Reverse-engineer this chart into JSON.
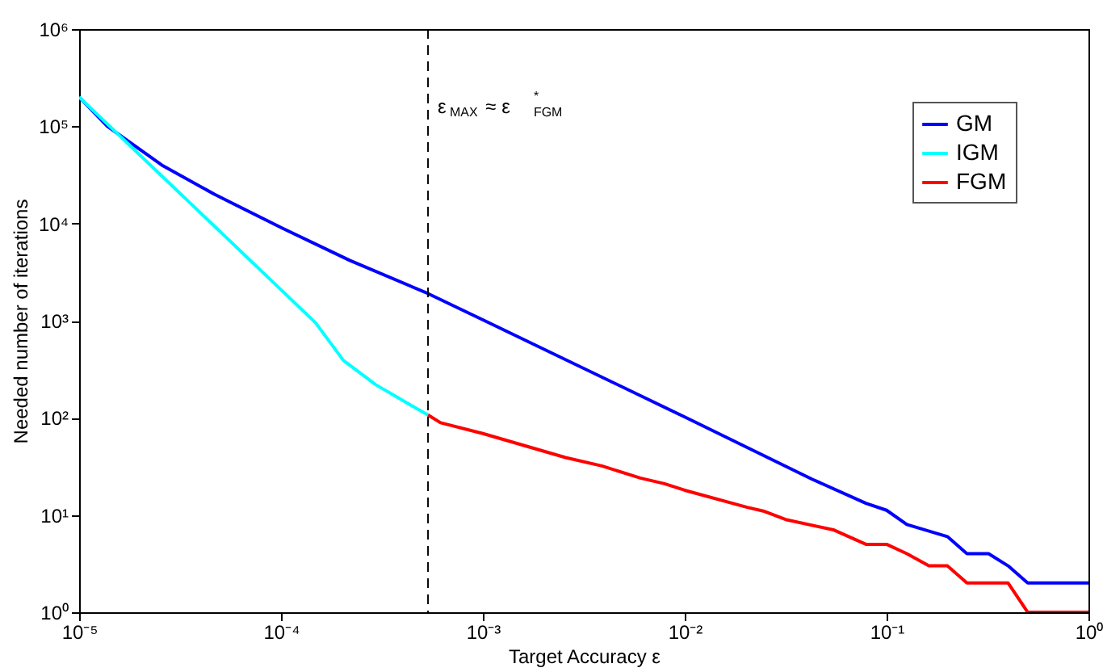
{
  "chart_data": {
    "type": "line",
    "xlabel": "Target Accuracy ε",
    "ylabel": "Needed number of iterations",
    "log": "xy",
    "grid": false,
    "legend": "top right",
    "xlim": [
      1e-05,
      1
    ],
    "ylim": [
      1,
      1000000
    ],
    "xticks": [
      {
        "value": 1e-05,
        "label": "10⁻⁵"
      },
      {
        "value": 0.0001,
        "label": "10⁻⁴"
      },
      {
        "value": 0.001,
        "label": "10⁻³"
      },
      {
        "value": 0.01,
        "label": "10⁻²"
      },
      {
        "value": 0.1,
        "label": "10⁻¹"
      },
      {
        "value": 1,
        "label": "10⁰"
      }
    ],
    "yticks": [
      {
        "value": 1,
        "label": "10⁰"
      },
      {
        "value": 10,
        "label": "10¹"
      },
      {
        "value": 100,
        "label": "10²"
      },
      {
        "value": 1000,
        "label": "10³"
      },
      {
        "value": 10000,
        "label": "10⁴"
      },
      {
        "value": 100000,
        "label": "10⁵"
      },
      {
        "value": 1000000,
        "label": "10⁶"
      }
    ],
    "series": [
      {
        "name": "GM",
        "color": "#0000ff",
        "x": [
          1e-05,
          1.38e-05,
          2.57e-05,
          4.68e-05,
          0.000102,
          0.000219,
          0.000535,
          0.001,
          0.01,
          0.0427,
          0.079,
          0.1,
          0.126,
          0.2,
          0.25,
          0.32,
          0.4,
          0.5,
          1
        ],
        "values": [
          200000,
          100000,
          39800,
          19950,
          8900,
          4170,
          1900,
          1020,
          102,
          23.4,
          13.2,
          11.2,
          8,
          6,
          4,
          4,
          3,
          2,
          2
        ]
      },
      {
        "name": "IGM",
        "color": "#00ffff",
        "x": [
          1e-05,
          0.000148,
          0.000204,
          0.000295,
          0.000407,
          0.000535
        ],
        "values": [
          200000,
          955,
          389,
          219,
          148,
          107
        ]
      },
      {
        "name": "FGM",
        "color": "#ff0000",
        "x": [
          0.000535,
          0.000617,
          0.001,
          0.00257,
          0.00389,
          0.00603,
          0.00794,
          0.01,
          0.0204,
          0.0245,
          0.0316,
          0.055,
          0.079,
          0.1,
          0.126,
          0.162,
          0.2,
          0.25,
          0.4,
          0.5,
          1
        ],
        "values": [
          107,
          89,
          69,
          39,
          32,
          24,
          21,
          18,
          12,
          11,
          9,
          7,
          5,
          5,
          4,
          3,
          3,
          2,
          2,
          1,
          1
        ]
      }
    ],
    "ref_lines": [
      {
        "axis": "x",
        "value": 0.000535,
        "label": "ε$_{MAX}$ ≈ ε$^{*}$$_{FGM}$",
        "color": "#000000",
        "line_style": "dashed"
      }
    ]
  }
}
